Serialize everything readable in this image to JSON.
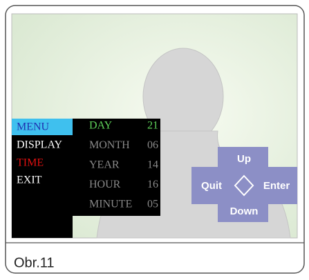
{
  "menu": {
    "items": [
      "MENU",
      "DISPLAY",
      "TIME",
      "EXIT"
    ]
  },
  "submenu": {
    "rows": [
      {
        "label": "DAY",
        "value": "21"
      },
      {
        "label": "MONTH",
        "value": "06"
      },
      {
        "label": "YEAR",
        "value": "14"
      },
      {
        "label": "HOUR",
        "value": "16"
      },
      {
        "label": "MINUTE",
        "value": "05"
      }
    ]
  },
  "dpad": {
    "up": "Up",
    "down": "Down",
    "left": "Quit",
    "right": "Enter"
  },
  "caption": "Obr.11"
}
